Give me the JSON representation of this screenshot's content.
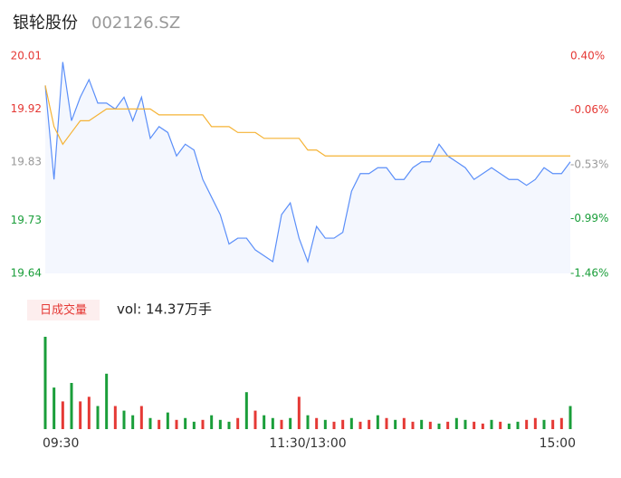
{
  "header": {
    "title": "银轮股份",
    "code": "002126.SZ"
  },
  "chart_data": {
    "type": "line",
    "x": [
      0,
      4,
      8,
      12,
      16,
      20,
      24,
      28,
      32,
      36,
      40,
      44,
      48,
      52,
      56,
      60,
      64,
      68,
      72,
      76,
      80,
      84,
      88,
      92,
      96,
      100,
      104,
      108,
      112,
      116,
      120,
      124,
      128,
      132,
      136,
      140,
      144,
      148,
      152,
      156,
      160,
      164,
      168,
      172,
      176,
      180,
      184,
      188,
      192,
      196,
      200,
      204,
      208,
      212,
      216,
      220,
      224,
      228,
      232,
      236,
      240
    ],
    "xlim": [
      0,
      240
    ],
    "xticks": [
      {
        "value": 0,
        "label": "09:30"
      },
      {
        "value": 120,
        "label": "11:30/13:00"
      },
      {
        "value": 240,
        "label": "15:00"
      }
    ],
    "ylim": [
      19.64,
      20.01
    ],
    "yticks": [
      {
        "value": 20.01,
        "label": "20.01"
      },
      {
        "value": 19.92,
        "label": "19.92"
      },
      {
        "value": 19.83,
        "label": "19.83"
      },
      {
        "value": 19.73,
        "label": "19.73"
      },
      {
        "value": 19.64,
        "label": "19.64"
      }
    ],
    "ytick_colors": [
      "#e53935",
      "#e53935",
      "#999999",
      "#1a9e3a",
      "#1a9e3a"
    ],
    "y2lim": [
      -1.46,
      0.4
    ],
    "y2ticks": [
      {
        "value": 0.4,
        "label": "0.40%"
      },
      {
        "value": -0.06,
        "label": "-0.06%"
      },
      {
        "value": -0.53,
        "label": "-0.53%"
      },
      {
        "value": -0.99,
        "label": "-0.99%"
      },
      {
        "value": -1.46,
        "label": "-1.46%"
      }
    ],
    "series": [
      {
        "name": "price",
        "color": "#5b8ff9",
        "values": [
          19.96,
          19.8,
          20.0,
          19.9,
          19.94,
          19.97,
          19.93,
          19.93,
          19.92,
          19.94,
          19.9,
          19.94,
          19.87,
          19.89,
          19.88,
          19.84,
          19.86,
          19.85,
          19.8,
          19.77,
          19.74,
          19.69,
          19.7,
          19.7,
          19.68,
          19.67,
          19.66,
          19.74,
          19.76,
          19.7,
          19.66,
          19.72,
          19.7,
          19.7,
          19.71,
          19.78,
          19.81,
          19.81,
          19.82,
          19.82,
          19.8,
          19.8,
          19.82,
          19.83,
          19.83,
          19.86,
          19.84,
          19.83,
          19.82,
          19.8,
          19.81,
          19.82,
          19.81,
          19.8,
          19.8,
          19.79,
          19.8,
          19.82,
          19.81,
          19.81,
          19.83
        ]
      },
      {
        "name": "average",
        "color": "#f5b335",
        "values": [
          19.96,
          19.89,
          19.86,
          19.88,
          19.9,
          19.9,
          19.91,
          19.92,
          19.92,
          19.92,
          19.92,
          19.92,
          19.92,
          19.91,
          19.91,
          19.91,
          19.91,
          19.91,
          19.91,
          19.89,
          19.89,
          19.89,
          19.88,
          19.88,
          19.88,
          19.87,
          19.87,
          19.87,
          19.87,
          19.87,
          19.85,
          19.85,
          19.84,
          19.84,
          19.84,
          19.84,
          19.84,
          19.84,
          19.84,
          19.84,
          19.84,
          19.84,
          19.84,
          19.84,
          19.84,
          19.84,
          19.84,
          19.84,
          19.84,
          19.84,
          19.84,
          19.84,
          19.84,
          19.84,
          19.84,
          19.84,
          19.84,
          19.84,
          19.84,
          19.84,
          19.84
        ]
      }
    ],
    "volume": {
      "button": "日成交量",
      "label": "vol: 14.37万手",
      "ylim": [
        0,
        100
      ],
      "values": [
        100,
        45,
        30,
        50,
        30,
        35,
        25,
        60,
        25,
        20,
        15,
        25,
        12,
        10,
        18,
        10,
        12,
        8,
        10,
        15,
        10,
        8,
        12,
        40,
        20,
        15,
        12,
        10,
        12,
        35,
        15,
        12,
        10,
        8,
        10,
        12,
        8,
        10,
        15,
        12,
        10,
        12,
        8,
        10,
        8,
        6,
        8,
        12,
        10,
        8,
        6,
        10,
        8,
        6,
        8,
        10,
        12,
        10,
        10,
        12,
        25
      ],
      "colors": [
        "#1a9e3a",
        "#1a9e3a",
        "#e53935",
        "#1a9e3a",
        "#e53935",
        "#e53935",
        "#1a9e3a",
        "#1a9e3a",
        "#e53935",
        "#1a9e3a",
        "#1a9e3a",
        "#e53935",
        "#1a9e3a",
        "#e53935",
        "#1a9e3a",
        "#e53935",
        "#1a9e3a",
        "#1a9e3a",
        "#e53935",
        "#1a9e3a",
        "#1a9e3a",
        "#1a9e3a",
        "#e53935",
        "#1a9e3a",
        "#e53935",
        "#1a9e3a",
        "#1a9e3a",
        "#e53935",
        "#1a9e3a",
        "#e53935",
        "#1a9e3a",
        "#e53935",
        "#1a9e3a",
        "#e53935",
        "#e53935",
        "#1a9e3a",
        "#e53935",
        "#e53935",
        "#1a9e3a",
        "#e53935",
        "#1a9e3a",
        "#e53935",
        "#e53935",
        "#1a9e3a",
        "#e53935",
        "#1a9e3a",
        "#e53935",
        "#1a9e3a",
        "#1a9e3a",
        "#e53935",
        "#e53935",
        "#1a9e3a",
        "#e53935",
        "#1a9e3a",
        "#1a9e3a",
        "#e53935",
        "#e53935",
        "#1a9e3a",
        "#e53935",
        "#e53935",
        "#1a9e3a"
      ]
    }
  }
}
